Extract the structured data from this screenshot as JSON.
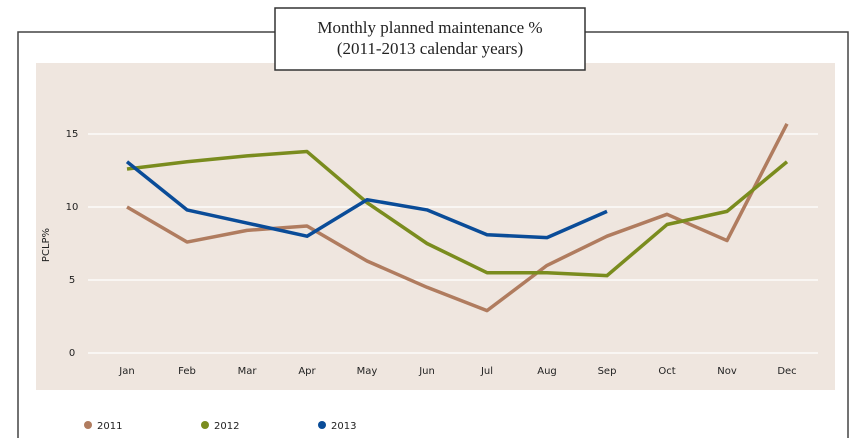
{
  "chart_data": {
    "type": "line",
    "title": [
      "Monthly planned maintenance %",
      "(2011-2013 calendar years)"
    ],
    "ylabel": "PCLP%",
    "categories": [
      "Jan",
      "Feb",
      "Mar",
      "Apr",
      "May",
      "Jun",
      "Jul",
      "Aug",
      "Sep",
      "Oct",
      "Nov",
      "Dec"
    ],
    "series": [
      {
        "name": "2011",
        "color": "#b07c5f",
        "values": [
          10,
          7.6,
          8.4,
          8.7,
          6.3,
          4.5,
          2.9,
          6.0,
          8.0,
          9.5,
          7.7,
          15.7
        ]
      },
      {
        "name": "2012",
        "color": "#7a8c1e",
        "values": [
          12.6,
          13.1,
          13.5,
          13.8,
          10.3,
          7.5,
          5.5,
          5.5,
          5.3,
          8.8,
          9.7,
          13.1
        ]
      },
      {
        "name": "2013",
        "color": "#0a4c98",
        "values": [
          13.1,
          9.8,
          8.9,
          8.0,
          10.5,
          9.8,
          8.1,
          7.9,
          9.7,
          null,
          null,
          null
        ]
      }
    ],
    "ylim": [
      0,
      20
    ],
    "yticks": [
      0,
      5,
      10,
      15
    ],
    "grid": true,
    "legend": "bottom"
  }
}
